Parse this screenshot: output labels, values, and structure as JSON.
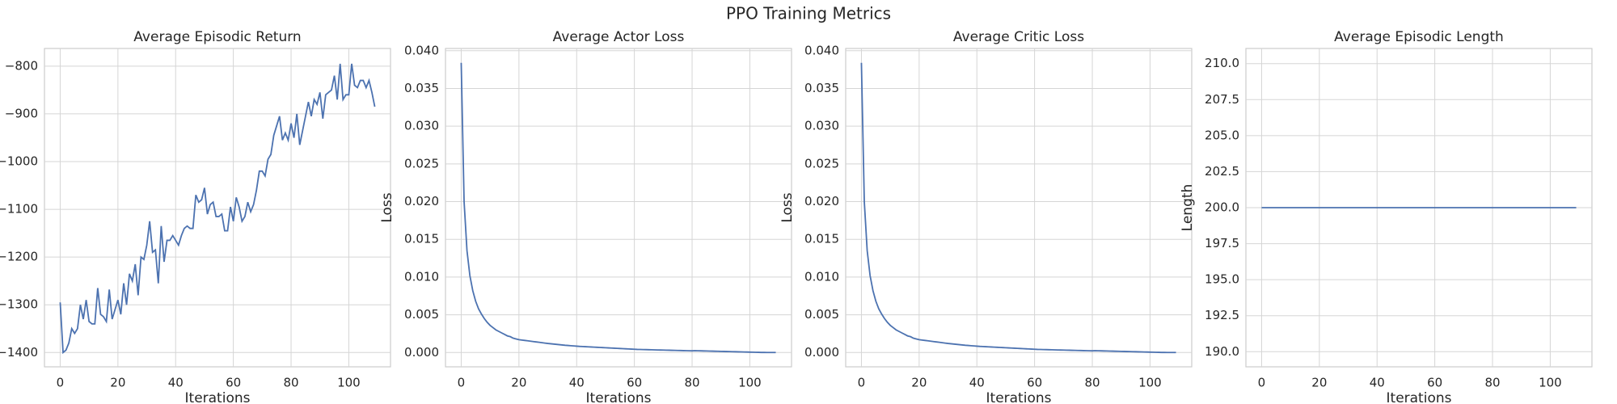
{
  "title": "PPO Training Metrics",
  "chart_data": [
    {
      "type": "line",
      "title": "Average Episodic Return",
      "xlabel": "Iterations",
      "color": "#4c72b0",
      "grid": true,
      "x": [
        0,
        1,
        2,
        3,
        4,
        5,
        6,
        7,
        8,
        9,
        10,
        11,
        12,
        13,
        14,
        15,
        16,
        17,
        18,
        19,
        20,
        21,
        22,
        23,
        24,
        25,
        26,
        27,
        28,
        29,
        30,
        31,
        32,
        33,
        34,
        35,
        36,
        37,
        38,
        39,
        40,
        41,
        42,
        43,
        44,
        45,
        46,
        47,
        48,
        49,
        50,
        51,
        52,
        53,
        54,
        55,
        56,
        57,
        58,
        59,
        60,
        61,
        62,
        63,
        64,
        65,
        66,
        67,
        68,
        69,
        70,
        71,
        72,
        73,
        74,
        75,
        76,
        77,
        78,
        79,
        80,
        81,
        82,
        83,
        84,
        85,
        86,
        87,
        88,
        89,
        90,
        91,
        92,
        93,
        94,
        95,
        96,
        97,
        98,
        99,
        100,
        101,
        102,
        103,
        104,
        105,
        106,
        107,
        108,
        109
      ],
      "values": [
        -1295,
        -1400,
        -1395,
        -1380,
        -1350,
        -1360,
        -1350,
        -1300,
        -1330,
        -1290,
        -1335,
        -1340,
        -1340,
        -1265,
        -1320,
        -1325,
        -1335,
        -1268,
        -1330,
        -1310,
        -1290,
        -1320,
        -1255,
        -1300,
        -1235,
        -1250,
        -1215,
        -1280,
        -1200,
        -1205,
        -1175,
        -1125,
        -1190,
        -1185,
        -1255,
        -1135,
        -1210,
        -1165,
        -1165,
        -1155,
        -1165,
        -1175,
        -1155,
        -1140,
        -1135,
        -1140,
        -1140,
        -1070,
        -1085,
        -1080,
        -1055,
        -1110,
        -1090,
        -1085,
        -1115,
        -1115,
        -1110,
        -1145,
        -1145,
        -1095,
        -1125,
        -1075,
        -1095,
        -1125,
        -1115,
        -1085,
        -1105,
        -1090,
        -1060,
        -1020,
        -1020,
        -1030,
        -995,
        -985,
        -945,
        -925,
        -905,
        -955,
        -940,
        -955,
        -920,
        -950,
        -900,
        -965,
        -935,
        -905,
        -875,
        -905,
        -870,
        -880,
        -855,
        -910,
        -860,
        -855,
        -850,
        -820,
        -870,
        -795,
        -870,
        -860,
        -860,
        -795,
        -840,
        -845,
        -830,
        -830,
        -845,
        -830,
        -855,
        -885
      ],
      "xlim": [
        -5.45,
        114.45
      ],
      "xticks": [
        0,
        20,
        40,
        60,
        80,
        100
      ],
      "ylim": [
        -1430,
        -763
      ],
      "yticks": [
        {
          "value": -1400,
          "label": "−1400"
        },
        {
          "value": -1300,
          "label": "−1300"
        },
        {
          "value": -1200,
          "label": "−1200"
        },
        {
          "value": -1100,
          "label": "−1100"
        },
        {
          "value": -1000,
          "label": "−1000"
        },
        {
          "value": -900,
          "label": "−900"
        },
        {
          "value": -800,
          "label": "−800"
        }
      ]
    },
    {
      "type": "line",
      "title": "Average Actor Loss",
      "xlabel": "Iterations",
      "ylabel": "Loss",
      "color": "#4c72b0",
      "grid": true,
      "x": [
        0,
        1,
        2,
        3,
        4,
        5,
        6,
        7,
        8,
        9,
        10,
        11,
        12,
        13,
        14,
        15,
        16,
        17,
        18,
        19,
        20,
        21,
        22,
        23,
        24,
        25,
        26,
        27,
        28,
        29,
        30,
        31,
        32,
        33,
        34,
        35,
        36,
        37,
        38,
        39,
        40,
        41,
        42,
        43,
        44,
        45,
        46,
        47,
        48,
        49,
        50,
        51,
        52,
        53,
        54,
        55,
        56,
        57,
        58,
        59,
        60,
        61,
        62,
        63,
        64,
        65,
        66,
        67,
        68,
        69,
        70,
        71,
        72,
        73,
        74,
        75,
        76,
        77,
        78,
        79,
        80,
        81,
        82,
        83,
        84,
        85,
        86,
        87,
        88,
        89,
        90,
        91,
        92,
        93,
        94,
        95,
        96,
        97,
        98,
        99,
        100,
        101,
        102,
        103,
        104,
        105,
        106,
        107,
        108,
        109
      ],
      "values": [
        0.0384,
        0.02,
        0.0135,
        0.0102,
        0.0082,
        0.0068,
        0.0058,
        0.0051,
        0.0045,
        0.004,
        0.0036,
        0.0033,
        0.003,
        0.0028,
        0.0026,
        0.0024,
        0.0022,
        0.0021,
        0.0019,
        0.0018,
        0.0017,
        0.00165,
        0.0016,
        0.00155,
        0.0015,
        0.00145,
        0.0014,
        0.00135,
        0.0013,
        0.00125,
        0.0012,
        0.00116,
        0.00112,
        0.00108,
        0.00104,
        0.001,
        0.00096,
        0.00093,
        0.0009,
        0.00087,
        0.00084,
        0.00081,
        0.00079,
        0.00077,
        0.00075,
        0.00073,
        0.00071,
        0.00069,
        0.00067,
        0.00065,
        0.00063,
        0.00061,
        0.00059,
        0.00057,
        0.00055,
        0.00053,
        0.00051,
        0.00049,
        0.00047,
        0.00045,
        0.00043,
        0.00041,
        0.0004,
        0.00039,
        0.00038,
        0.00037,
        0.00036,
        0.00035,
        0.00034,
        0.00033,
        0.00032,
        0.00031,
        0.0003,
        0.00029,
        0.00028,
        0.00027,
        0.00026,
        0.00025,
        0.00024,
        0.00023,
        0.00022,
        0.00024,
        0.00023,
        0.00022,
        0.00021,
        0.0002,
        0.00019,
        0.00018,
        0.00017,
        0.00016,
        0.00015,
        0.00014,
        0.00013,
        0.00012,
        0.00011,
        0.0001,
        9e-05,
        8e-05,
        7e-05,
        6e-05,
        5e-05,
        4e-05,
        3e-05,
        2e-05,
        1e-05,
        1e-05,
        0,
        0,
        0,
        0
      ],
      "xlim": [
        -5.45,
        114.45
      ],
      "xticks": [
        0,
        20,
        40,
        60,
        80,
        100
      ],
      "ylim": [
        -0.0019,
        0.0403
      ],
      "yticks": [
        {
          "value": 0,
          "label": "0.000"
        },
        {
          "value": 0.005,
          "label": "0.005"
        },
        {
          "value": 0.01,
          "label": "0.010"
        },
        {
          "value": 0.015,
          "label": "0.015"
        },
        {
          "value": 0.02,
          "label": "0.020"
        },
        {
          "value": 0.025,
          "label": "0.025"
        },
        {
          "value": 0.03,
          "label": "0.030"
        },
        {
          "value": 0.035,
          "label": "0.035"
        },
        {
          "value": 0.04,
          "label": "0.040"
        }
      ]
    },
    {
      "type": "line",
      "title": "Average Critic Loss",
      "xlabel": "Iterations",
      "ylabel": "Loss",
      "color": "#4c72b0",
      "grid": true,
      "x": [
        0,
        1,
        2,
        3,
        4,
        5,
        6,
        7,
        8,
        9,
        10,
        11,
        12,
        13,
        14,
        15,
        16,
        17,
        18,
        19,
        20,
        21,
        22,
        23,
        24,
        25,
        26,
        27,
        28,
        29,
        30,
        31,
        32,
        33,
        34,
        35,
        36,
        37,
        38,
        39,
        40,
        41,
        42,
        43,
        44,
        45,
        46,
        47,
        48,
        49,
        50,
        51,
        52,
        53,
        54,
        55,
        56,
        57,
        58,
        59,
        60,
        61,
        62,
        63,
        64,
        65,
        66,
        67,
        68,
        69,
        70,
        71,
        72,
        73,
        74,
        75,
        76,
        77,
        78,
        79,
        80,
        81,
        82,
        83,
        84,
        85,
        86,
        87,
        88,
        89,
        90,
        91,
        92,
        93,
        94,
        95,
        96,
        97,
        98,
        99,
        100,
        101,
        102,
        103,
        104,
        105,
        106,
        107,
        108,
        109
      ],
      "values": [
        0.0384,
        0.02,
        0.0135,
        0.0102,
        0.0082,
        0.0068,
        0.0058,
        0.0051,
        0.0045,
        0.004,
        0.0036,
        0.0033,
        0.003,
        0.0028,
        0.0026,
        0.0024,
        0.0022,
        0.0021,
        0.0019,
        0.0018,
        0.0017,
        0.00165,
        0.0016,
        0.00155,
        0.0015,
        0.00145,
        0.0014,
        0.00135,
        0.0013,
        0.00125,
        0.0012,
        0.00116,
        0.00112,
        0.00108,
        0.00104,
        0.001,
        0.00096,
        0.00093,
        0.0009,
        0.00087,
        0.00084,
        0.00081,
        0.00079,
        0.00077,
        0.00075,
        0.00073,
        0.00071,
        0.00069,
        0.00067,
        0.00065,
        0.00063,
        0.00061,
        0.00059,
        0.00057,
        0.00055,
        0.00053,
        0.00051,
        0.00049,
        0.00047,
        0.00045,
        0.00043,
        0.00041,
        0.0004,
        0.00039,
        0.00038,
        0.00037,
        0.00036,
        0.00035,
        0.00034,
        0.00033,
        0.00032,
        0.00031,
        0.0003,
        0.00029,
        0.00028,
        0.00027,
        0.00026,
        0.00025,
        0.00024,
        0.00023,
        0.00022,
        0.00024,
        0.00023,
        0.00022,
        0.00021,
        0.0002,
        0.00019,
        0.00018,
        0.00017,
        0.00016,
        0.00015,
        0.00014,
        0.00013,
        0.00012,
        0.00011,
        0.0001,
        9e-05,
        8e-05,
        7e-05,
        6e-05,
        5e-05,
        4e-05,
        3e-05,
        2e-05,
        1e-05,
        1e-05,
        0,
        0,
        0,
        0
      ],
      "xlim": [
        -5.45,
        114.45
      ],
      "xticks": [
        0,
        20,
        40,
        60,
        80,
        100
      ],
      "ylim": [
        -0.0019,
        0.0403
      ],
      "yticks": [
        {
          "value": 0,
          "label": "0.000"
        },
        {
          "value": 0.005,
          "label": "0.005"
        },
        {
          "value": 0.01,
          "label": "0.010"
        },
        {
          "value": 0.015,
          "label": "0.015"
        },
        {
          "value": 0.02,
          "label": "0.020"
        },
        {
          "value": 0.025,
          "label": "0.025"
        },
        {
          "value": 0.03,
          "label": "0.030"
        },
        {
          "value": 0.035,
          "label": "0.035"
        },
        {
          "value": 0.04,
          "label": "0.040"
        }
      ]
    },
    {
      "type": "line",
      "title": "Average Episodic Length",
      "xlabel": "Iterations",
      "ylabel": "Length",
      "color": "#4c72b0",
      "grid": true,
      "x": [
        0,
        1,
        2,
        3,
        4,
        5,
        6,
        7,
        8,
        9,
        10,
        11,
        12,
        13,
        14,
        15,
        16,
        17,
        18,
        19,
        20,
        21,
        22,
        23,
        24,
        25,
        26,
        27,
        28,
        29,
        30,
        31,
        32,
        33,
        34,
        35,
        36,
        37,
        38,
        39,
        40,
        41,
        42,
        43,
        44,
        45,
        46,
        47,
        48,
        49,
        50,
        51,
        52,
        53,
        54,
        55,
        56,
        57,
        58,
        59,
        60,
        61,
        62,
        63,
        64,
        65,
        66,
        67,
        68,
        69,
        70,
        71,
        72,
        73,
        74,
        75,
        76,
        77,
        78,
        79,
        80,
        81,
        82,
        83,
        84,
        85,
        86,
        87,
        88,
        89,
        90,
        91,
        92,
        93,
        94,
        95,
        96,
        97,
        98,
        99,
        100,
        101,
        102,
        103,
        104,
        105,
        106,
        107,
        108,
        109
      ],
      "values": [
        200,
        200,
        200,
        200,
        200,
        200,
        200,
        200,
        200,
        200,
        200,
        200,
        200,
        200,
        200,
        200,
        200,
        200,
        200,
        200,
        200,
        200,
        200,
        200,
        200,
        200,
        200,
        200,
        200,
        200,
        200,
        200,
        200,
        200,
        200,
        200,
        200,
        200,
        200,
        200,
        200,
        200,
        200,
        200,
        200,
        200,
        200,
        200,
        200,
        200,
        200,
        200,
        200,
        200,
        200,
        200,
        200,
        200,
        200,
        200,
        200,
        200,
        200,
        200,
        200,
        200,
        200,
        200,
        200,
        200,
        200,
        200,
        200,
        200,
        200,
        200,
        200,
        200,
        200,
        200,
        200,
        200,
        200,
        200,
        200,
        200,
        200,
        200,
        200,
        200,
        200,
        200,
        200,
        200,
        200,
        200,
        200,
        200,
        200,
        200,
        200,
        200,
        200,
        200,
        200,
        200,
        200,
        200,
        200,
        200
      ],
      "xlim": [
        -5.45,
        114.45
      ],
      "xticks": [
        0,
        20,
        40,
        60,
        80,
        100
      ],
      "ylim": [
        188.95,
        211.05
      ],
      "yticks": [
        {
          "value": 190,
          "label": "190.0"
        },
        {
          "value": 192.5,
          "label": "192.5"
        },
        {
          "value": 195,
          "label": "195.0"
        },
        {
          "value": 197.5,
          "label": "197.5"
        },
        {
          "value": 200,
          "label": "200.0"
        },
        {
          "value": 202.5,
          "label": "202.5"
        },
        {
          "value": 205,
          "label": "205.0"
        },
        {
          "value": 207.5,
          "label": "207.5"
        },
        {
          "value": 210,
          "label": "210.0"
        }
      ]
    }
  ]
}
